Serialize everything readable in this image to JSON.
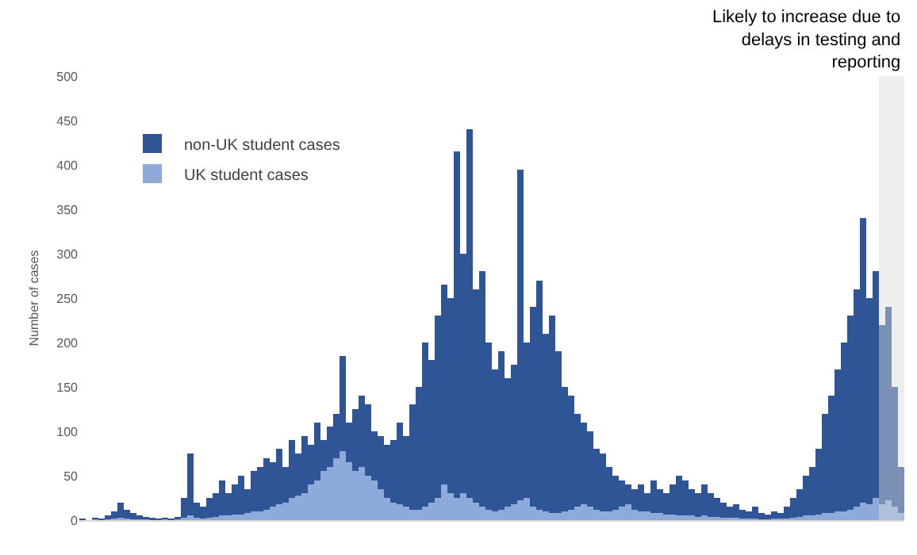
{
  "chart_data": {
    "type": "bar",
    "stacked": true,
    "ylabel": "Number of cases",
    "ylim": [
      0,
      500
    ],
    "yticks": [
      0,
      50,
      100,
      150,
      200,
      250,
      300,
      350,
      400,
      450,
      500
    ],
    "grid": false,
    "legend": "top left",
    "tick_labels": "y",
    "categories": [
      null,
      null,
      null,
      null,
      null,
      null,
      null,
      null,
      null,
      null,
      null,
      null,
      null,
      null,
      null,
      null,
      null,
      null,
      null,
      null,
      null,
      null,
      null,
      null,
      null,
      null,
      null,
      null,
      null,
      null,
      null,
      null,
      null,
      null,
      null,
      null,
      null,
      null,
      null,
      null,
      null,
      null,
      null,
      null,
      null,
      null,
      null,
      null,
      null,
      null,
      null,
      null,
      null,
      null,
      null,
      null,
      null,
      null,
      null,
      null,
      null,
      null,
      null,
      null,
      null,
      null,
      null,
      null,
      null,
      null,
      null,
      null,
      null,
      null,
      null,
      null,
      null,
      null,
      null,
      null,
      null,
      null,
      null,
      null,
      null,
      null,
      null,
      null,
      null,
      null,
      null,
      null,
      null,
      null,
      null,
      null,
      null,
      null,
      null,
      null,
      null,
      null,
      null,
      null,
      null,
      null,
      null,
      null,
      null,
      null,
      null,
      null,
      null,
      null,
      null,
      null,
      null,
      null,
      null,
      null,
      null,
      null,
      null,
      null,
      null,
      null,
      null,
      null,
      null,
      null
    ],
    "series": [
      {
        "name": "UK student cases",
        "color": "#8eaadb",
        "values": [
          0,
          0,
          1,
          0,
          1,
          2,
          3,
          2,
          1,
          1,
          1,
          0,
          0,
          1,
          0,
          1,
          3,
          5,
          3,
          2,
          3,
          4,
          5,
          5,
          6,
          6,
          8,
          10,
          10,
          12,
          15,
          18,
          20,
          25,
          28,
          30,
          40,
          45,
          55,
          60,
          70,
          78,
          65,
          55,
          60,
          50,
          45,
          35,
          25,
          20,
          18,
          15,
          12,
          12,
          15,
          20,
          25,
          40,
          30,
          25,
          30,
          25,
          20,
          15,
          12,
          10,
          12,
          15,
          18,
          22,
          25,
          15,
          12,
          10,
          8,
          8,
          10,
          12,
          15,
          18,
          15,
          12,
          10,
          10,
          12,
          15,
          18,
          12,
          10,
          10,
          8,
          8,
          6,
          6,
          5,
          5,
          5,
          4,
          5,
          4,
          4,
          3,
          3,
          3,
          2,
          2,
          2,
          1,
          1,
          2,
          2,
          2,
          3,
          4,
          5,
          5,
          6,
          8,
          8,
          10,
          10,
          12,
          15,
          20,
          18,
          25,
          18,
          22,
          15,
          8
        ]
      },
      {
        "name": "non-UK student cases",
        "color": "#2f5597",
        "values": [
          2,
          0,
          2,
          2,
          4,
          8,
          17,
          10,
          7,
          4,
          3,
          3,
          2,
          2,
          2,
          3,
          22,
          70,
          17,
          13,
          22,
          26,
          40,
          25,
          34,
          44,
          27,
          45,
          50,
          58,
          50,
          62,
          40,
          65,
          47,
          65,
          45,
          65,
          35,
          45,
          50,
          107,
          45,
          70,
          80,
          80,
          55,
          60,
          60,
          70,
          92,
          80,
          118,
          138,
          185,
          160,
          205,
          225,
          220,
          390,
          270,
          415,
          240,
          265,
          188,
          160,
          178,
          145,
          157,
          373,
          175,
          225,
          258,
          200,
          222,
          182,
          140,
          128,
          105,
          92,
          85,
          68,
          65,
          50,
          38,
          30,
          22,
          23,
          30,
          20,
          37,
          27,
          24,
          34,
          45,
          40,
          30,
          26,
          35,
          26,
          21,
          17,
          12,
          15,
          10,
          8,
          13,
          7,
          5,
          8,
          6,
          13,
          22,
          31,
          45,
          55,
          74,
          112,
          132,
          160,
          190,
          218,
          245,
          320,
          232,
          255,
          202,
          218,
          135,
          52
        ]
      }
    ],
    "annotations": [
      "Likely to increase due to delays in testing and reporting"
    ]
  }
}
